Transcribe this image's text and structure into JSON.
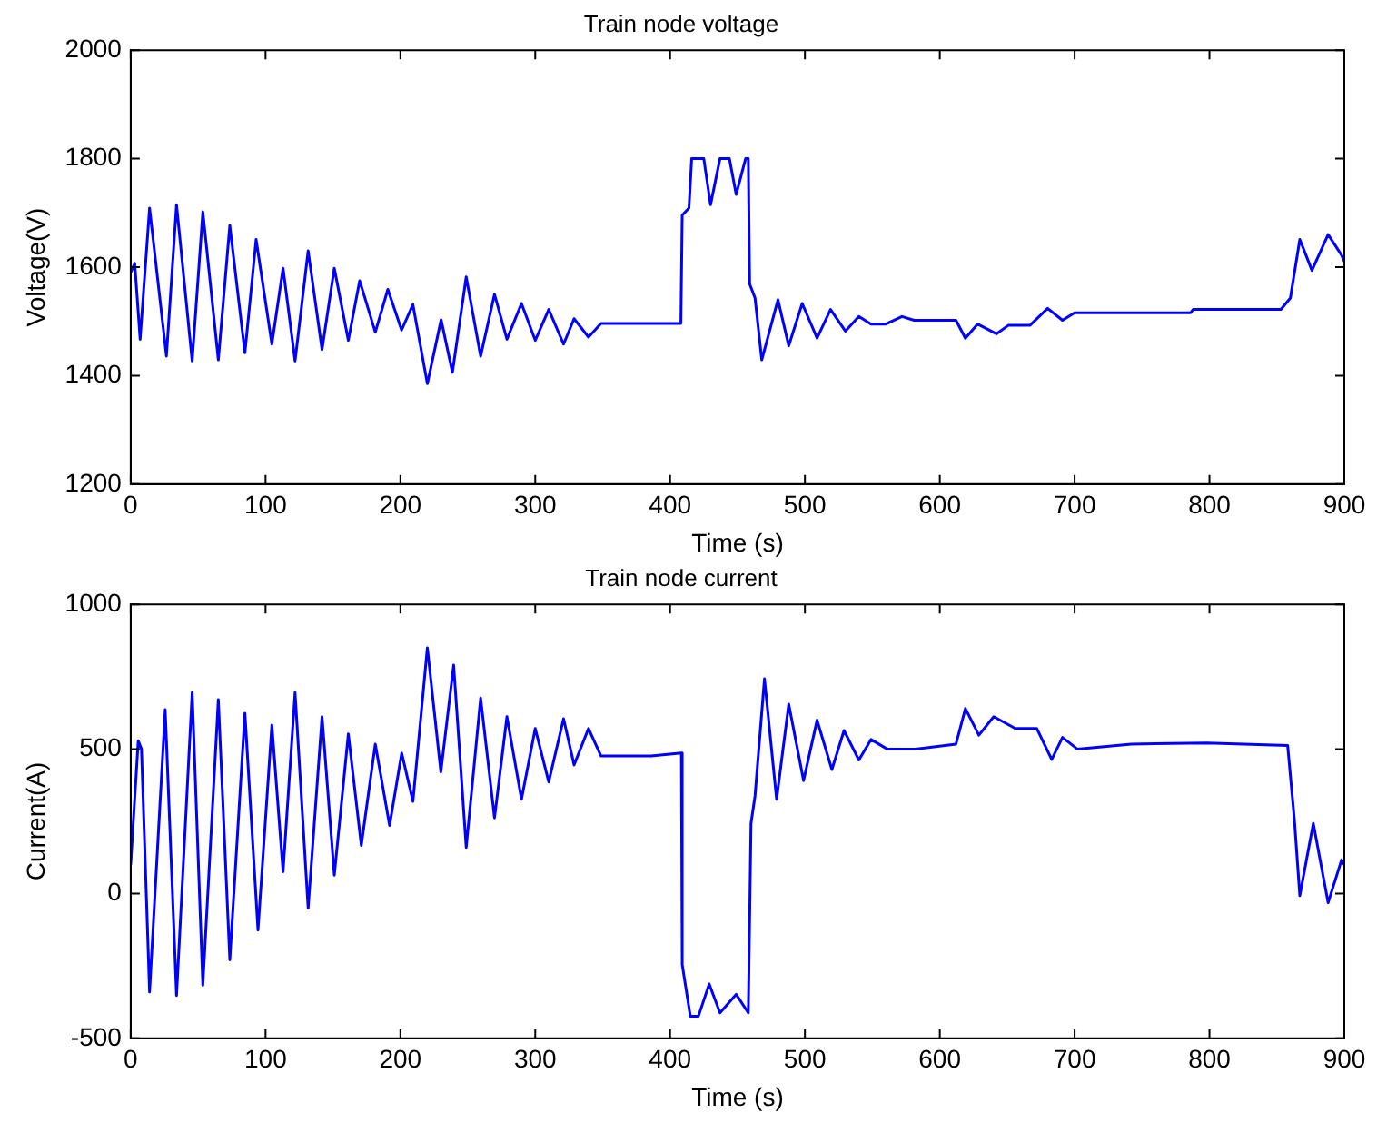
{
  "chart_data": [
    {
      "type": "line",
      "title": "Train node voltage",
      "xlabel": "Time (s)",
      "ylabel": "Voltage(V)",
      "xlim": [
        0,
        900
      ],
      "xticks": [
        0,
        100,
        200,
        300,
        400,
        500,
        600,
        700,
        800,
        900
      ],
      "ylim": [
        1200,
        2000
      ],
      "yticks": [
        1200,
        1400,
        1600,
        1800,
        2000
      ],
      "series": [
        {
          "color": "#0000ff",
          "x": [
            0,
            3,
            7,
            14,
            26.5,
            34,
            45.6,
            53.5,
            65,
            73.5,
            84.7,
            93,
            104.7,
            113,
            121.9,
            131.6,
            141.9,
            151,
            161.4,
            169.8,
            181.4,
            190.7,
            200.9,
            209.3,
            220,
            230.2,
            238.6,
            248.8,
            259.5,
            269.8,
            279,
            289.8,
            300,
            310,
            321,
            328.8,
            339.5,
            348.8,
            408,
            409,
            414,
            416,
            425,
            430,
            437,
            444,
            449,
            456,
            458,
            459,
            463,
            468,
            480,
            488,
            498,
            509,
            519,
            530,
            540,
            549,
            560,
            572,
            581,
            612,
            619,
            628,
            642,
            651,
            667,
            680,
            691,
            700,
            786,
            788,
            853,
            860,
            867,
            876,
            888,
            898,
            900
          ],
          "values": [
            1590,
            1607,
            1467,
            1709,
            1436,
            1715,
            1427,
            1702,
            1429,
            1677,
            1442,
            1651,
            1458,
            1598,
            1427,
            1630,
            1448,
            1598,
            1465,
            1575,
            1480,
            1559,
            1484,
            1531,
            1385,
            1503,
            1406,
            1582,
            1436,
            1550,
            1467,
            1533,
            1465,
            1522,
            1458,
            1505,
            1471,
            1496,
            1496,
            1696,
            1709,
            1800,
            1800,
            1715,
            1800,
            1800,
            1734,
            1800,
            1800,
            1569,
            1543,
            1429,
            1540,
            1455,
            1533,
            1469,
            1522,
            1482,
            1509,
            1495,
            1495,
            1509,
            1502,
            1502,
            1469,
            1495,
            1477,
            1493,
            1493,
            1524,
            1502,
            1516,
            1516,
            1522,
            1522,
            1543,
            1651,
            1594,
            1660,
            1622,
            1610
          ]
        }
      ]
    },
    {
      "type": "line",
      "title": "Train node current",
      "xlabel": "Time (s)",
      "ylabel": "Current(A)",
      "xlim": [
        0,
        900
      ],
      "xticks": [
        0,
        100,
        200,
        300,
        400,
        500,
        600,
        700,
        800,
        900
      ],
      "ylim": [
        -500,
        1000
      ],
      "yticks": [
        -500,
        0,
        500,
        1000
      ],
      "series": [
        {
          "color": "#0000ff",
          "x": [
            0,
            5.6,
            8,
            14,
            25.6,
            34,
            45.6,
            53.5,
            65,
            73.5,
            84.7,
            94.4,
            104.7,
            113,
            121.9,
            131.6,
            141.9,
            151,
            161.4,
            171,
            181.4,
            192,
            201,
            209.3,
            220,
            230,
            239.5,
            248.8,
            259.5,
            269.8,
            279,
            289.8,
            300,
            310,
            321,
            328.8,
            339.5,
            348.8,
            386,
            408.4,
            409,
            415,
            421,
            429,
            437,
            449,
            458,
            460,
            463,
            470,
            479,
            488,
            499,
            509,
            520,
            529,
            540,
            549,
            561,
            582,
            612,
            619,
            629,
            640,
            656,
            672,
            683,
            691,
            702,
            742,
            798,
            858,
            863,
            867,
            877,
            888,
            898,
            900
          ],
          "values": [
            100,
            529,
            500,
            -340,
            636,
            -352,
            695,
            -317,
            671,
            -229,
            624,
            -126,
            583,
            76,
            695,
            -50,
            612,
            64,
            552,
            167,
            517,
            236,
            486,
            319,
            850,
            421,
            790,
            160,
            676,
            262,
            612,
            326,
            571,
            386,
            605,
            445,
            571,
            476,
            476,
            486,
            -245,
            -424,
            -424,
            -312,
            -412,
            -348,
            -412,
            243,
            338,
            743,
            326,
            655,
            391,
            600,
            429,
            564,
            462,
            533,
            500,
            500,
            517,
            640,
            548,
            612,
            571,
            571,
            464,
            540,
            500,
            517,
            521,
            512,
            255,
            -7,
            243,
            -31,
            117,
            100
          ]
        }
      ]
    }
  ]
}
